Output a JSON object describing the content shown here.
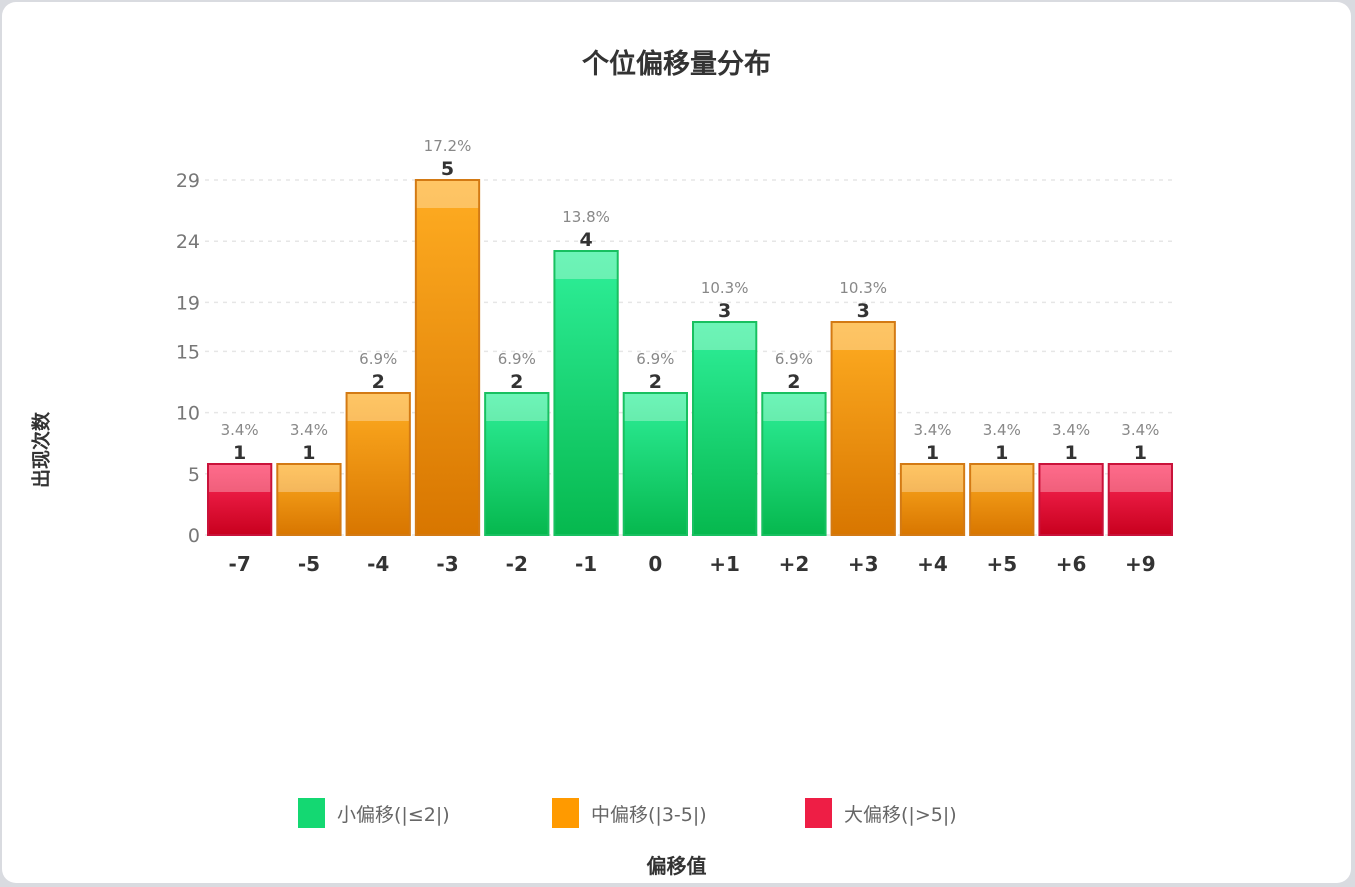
{
  "chart_data": {
    "type": "bar",
    "title": "个位偏移量分布",
    "xlabel": "偏移值",
    "ylabel": "出现次数",
    "y_ticks": [
      "0",
      "5",
      "10",
      "15",
      "19",
      "24",
      "29"
    ],
    "y_tick_values": [
      0,
      5,
      10,
      15,
      19,
      24,
      29
    ],
    "ylim": [
      0,
      29
    ],
    "grid": true,
    "legend_position": "bottom",
    "categories": [
      "-7",
      "-5",
      "-4",
      "-3",
      "-2",
      "-1",
      "0",
      "+1",
      "+2",
      "+3",
      "+4",
      "+5",
      "+6",
      "+9"
    ],
    "values": [
      1,
      1,
      2,
      5,
      2,
      4,
      2,
      3,
      2,
      3,
      1,
      1,
      1,
      1
    ],
    "value_labels": [
      "1",
      "1",
      "2",
      "5",
      "2",
      "4",
      "2",
      "3",
      "2",
      "3",
      "1",
      "1",
      "1",
      "1"
    ],
    "percent_labels": [
      "3.4%",
      "3.4%",
      "6.9%",
      "17.2%",
      "6.9%",
      "13.8%",
      "6.9%",
      "10.3%",
      "6.9%",
      "10.3%",
      "3.4%",
      "3.4%",
      "3.4%",
      "3.4%"
    ],
    "bar_groups": [
      "large",
      "medium",
      "medium",
      "medium",
      "small",
      "small",
      "small",
      "small",
      "small",
      "medium",
      "medium",
      "medium",
      "large",
      "large"
    ],
    "legend": [
      {
        "key": "small",
        "label": "小偏移(|≤2|)",
        "color": "#14d872"
      },
      {
        "key": "medium",
        "label": "中偏移(|3-5|)",
        "color": "#ff9a00"
      },
      {
        "key": "large",
        "label": "大偏移(|>5|)",
        "color": "#ee1e45"
      }
    ]
  },
  "colors": {
    "small": {
      "top": "#2ff09a",
      "bottom": "#06b84e",
      "border": "#18c060"
    },
    "medium": {
      "top": "#ffad22",
      "bottom": "#d87600",
      "border": "#d37a14"
    },
    "large": {
      "top": "#ff2c5a",
      "bottom": "#c8001e",
      "border": "#c9123a"
    }
  }
}
